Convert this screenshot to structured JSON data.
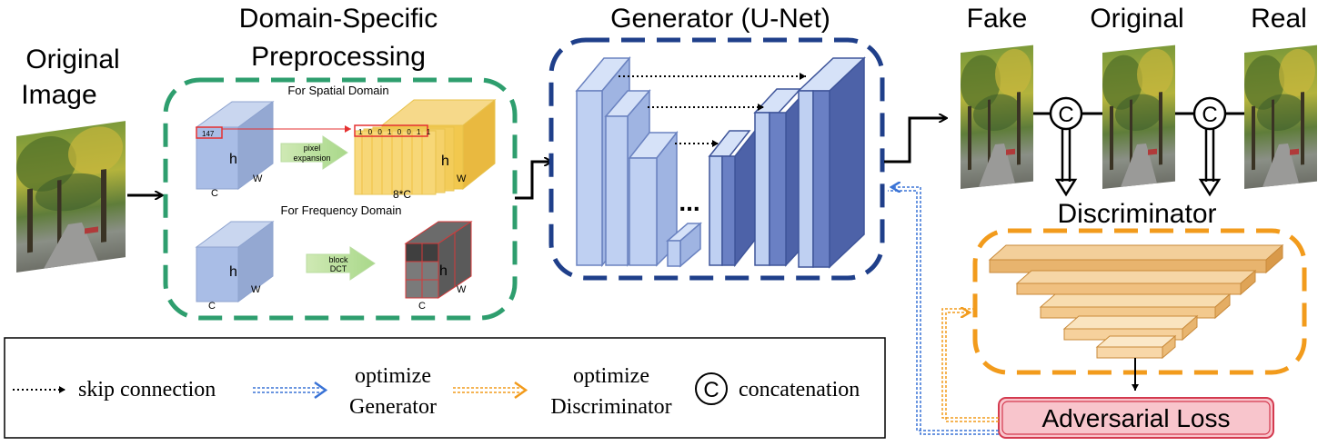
{
  "input": {
    "title_line1": "Original",
    "title_line2": "Image"
  },
  "preprocessing": {
    "title_line1": "Domain-Specific",
    "title_line2": "Preprocessing",
    "spatial": {
      "label": "For Spatial Domain",
      "cell_value": "147",
      "bits": "1 0 0 1 0 0 1 1",
      "arrow_line1": "pixel",
      "arrow_line2": "expansion",
      "h": "h",
      "w": "W",
      "c": "C",
      "out_h": "h",
      "out_w": "W",
      "out_c": "8*C"
    },
    "frequency": {
      "label": "For Frequency Domain",
      "arrow_line1": "block",
      "arrow_line2": "DCT",
      "h": "h",
      "w": "W",
      "c": "C",
      "out_h": "h",
      "out_w": "W",
      "out_c": "C"
    }
  },
  "generator": {
    "title": "Generator (U-Net)",
    "ellipsis": "..."
  },
  "outputs": {
    "fake": "Fake",
    "original": "Original",
    "real": "Real",
    "concat_symbol": "C"
  },
  "discriminator": {
    "title": "Discriminator"
  },
  "loss": {
    "label": "Adversarial Loss"
  },
  "legend": {
    "skip": "skip connection",
    "opt_gen_line1": "optimize",
    "opt_gen_line2": "Generator",
    "opt_disc_line1": "optimize",
    "opt_disc_line2": "Discriminator",
    "concat_symbol": "C",
    "concat": "concatenation"
  },
  "colors": {
    "green_dash": "#2e9e6e",
    "blue_dash": "#1f3f8a",
    "orange_dash": "#f29b1c",
    "loss_fill": "#f8c5cc",
    "loss_stroke": "#d43a4f",
    "opt_gen_arrow": "#3a73d6",
    "opt_disc_arrow": "#f29b1c"
  }
}
